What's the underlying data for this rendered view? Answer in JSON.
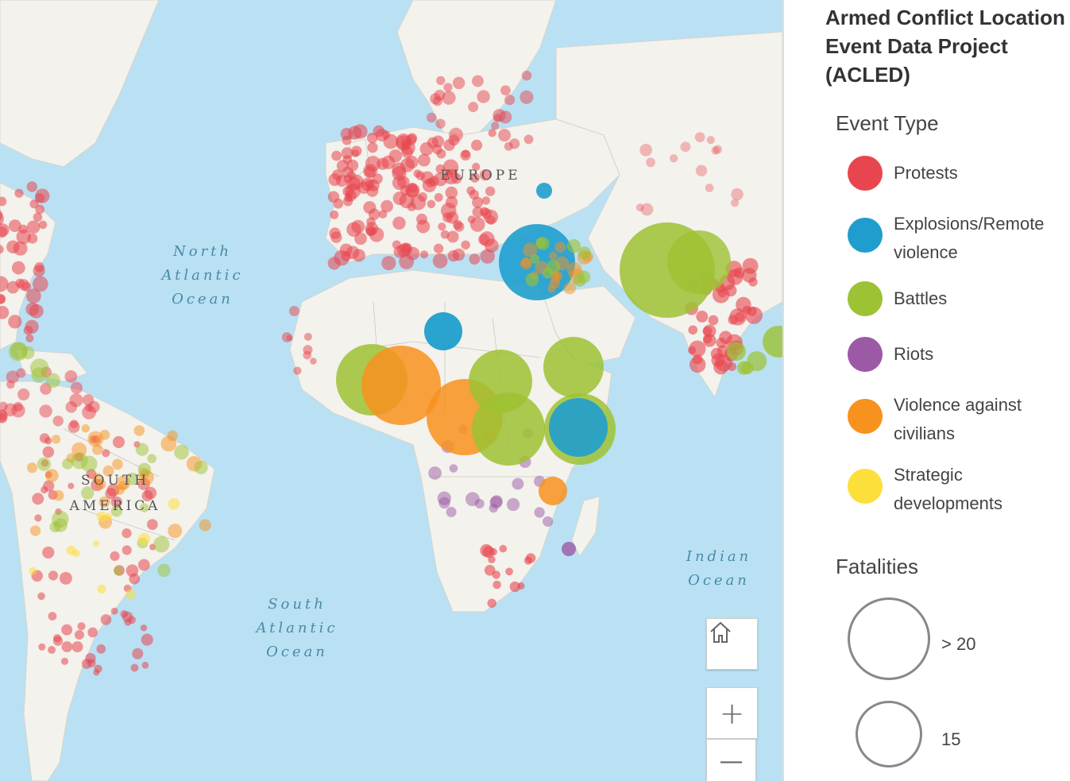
{
  "map": {
    "ocean_labels": {
      "north_atlantic": "North\nAtlantic\nOcean",
      "south_atlantic": "South\nAtlantic\nOcean",
      "indian": "Indian\nOcean"
    },
    "continent_labels": {
      "europe": "EUROPE",
      "south_america": "SOUTH\nAMERICA"
    },
    "controls": {
      "home_icon": "home-icon",
      "zoom_in": "+",
      "zoom_out": "—"
    },
    "colors": {
      "ocean": "#b9e1f3",
      "land": "#f3f2ec",
      "protests": "#e8464f",
      "explosions": "#1f9ece",
      "battles": "#9dc233",
      "riots": "#9b59a6",
      "violence": "#f7921e",
      "strategic": "#fddf3c"
    }
  },
  "legend": {
    "title": "Armed Conflict Location\nEvent Data Project\n(ACLED)",
    "event_type_heading": "Event Type",
    "event_types": [
      {
        "label": "Protests",
        "color": "#e8464f"
      },
      {
        "label": "Explosions/Remote\nviolence",
        "color": "#1f9ece"
      },
      {
        "label": "Battles",
        "color": "#9dc233"
      },
      {
        "label": "Riots",
        "color": "#9b59a6"
      },
      {
        "label": "Violence against\ncivilians",
        "color": "#f7921e"
      },
      {
        "label": "Strategic\ndevelopments",
        "color": "#fddf3c"
      }
    ],
    "fatalities_heading": "Fatalities",
    "fatalities": [
      {
        "label": "> 20"
      },
      {
        "label": "15"
      }
    ]
  }
}
